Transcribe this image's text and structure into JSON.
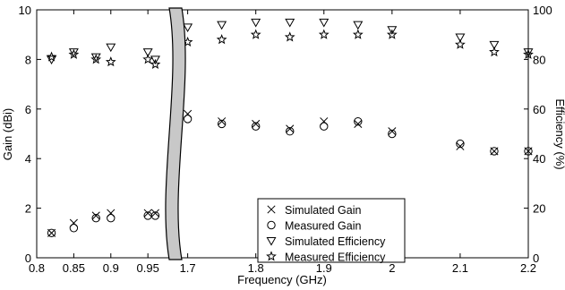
{
  "chart_data": {
    "type": "scatter",
    "title": "",
    "xlabel": "Frequency (GHz)",
    "ylabel": "Gain (dBi)",
    "y2label": "Efficiency (%)",
    "ylim": [
      0,
      10
    ],
    "y2lim": [
      0,
      100
    ],
    "yticks": [
      0,
      2,
      4,
      6,
      8,
      10
    ],
    "y2ticks": [
      0,
      20,
      40,
      60,
      80,
      100
    ],
    "grid": false,
    "legend_position": "lower-center",
    "x_break": true,
    "x_segments": [
      {
        "xlim": [
          0.8,
          0.98
        ],
        "xticks": [
          "0.8",
          "0.85",
          "0.9",
          "0.95"
        ]
      },
      {
        "xlim": [
          1.69,
          2.2
        ],
        "xticks": [
          "1.7",
          "1.8",
          "1.9",
          "2",
          "2.1",
          "2.2"
        ]
      }
    ],
    "series": [
      {
        "name": "Simulated Gain",
        "marker": "x",
        "axis": "left",
        "points": [
          [
            0.82,
            1.0
          ],
          [
            0.85,
            1.4
          ],
          [
            0.88,
            1.7
          ],
          [
            0.9,
            1.8
          ],
          [
            0.95,
            1.8
          ],
          [
            0.96,
            1.8
          ],
          [
            1.7,
            5.8
          ],
          [
            1.75,
            5.5
          ],
          [
            1.8,
            5.4
          ],
          [
            1.85,
            5.2
          ],
          [
            1.9,
            5.5
          ],
          [
            1.95,
            5.4
          ],
          [
            2.0,
            5.1
          ],
          [
            2.1,
            4.5
          ],
          [
            2.15,
            4.3
          ],
          [
            2.2,
            4.3
          ]
        ]
      },
      {
        "name": "Measured Gain",
        "marker": "o",
        "axis": "left",
        "points": [
          [
            0.82,
            1.0
          ],
          [
            0.85,
            1.2
          ],
          [
            0.88,
            1.6
          ],
          [
            0.9,
            1.6
          ],
          [
            0.95,
            1.7
          ],
          [
            0.96,
            1.7
          ],
          [
            1.7,
            5.6
          ],
          [
            1.75,
            5.4
          ],
          [
            1.8,
            5.3
          ],
          [
            1.85,
            5.1
          ],
          [
            1.9,
            5.3
          ],
          [
            1.95,
            5.5
          ],
          [
            2.0,
            5.0
          ],
          [
            2.1,
            4.6
          ],
          [
            2.15,
            4.3
          ],
          [
            2.2,
            4.3
          ]
        ]
      },
      {
        "name": "Simulated Efficiency",
        "marker": "triangle-down",
        "axis": "right",
        "points": [
          [
            0.82,
            80
          ],
          [
            0.85,
            83
          ],
          [
            0.88,
            81
          ],
          [
            0.9,
            85
          ],
          [
            0.95,
            83
          ],
          [
            0.96,
            80
          ],
          [
            1.7,
            93
          ],
          [
            1.75,
            94
          ],
          [
            1.8,
            95
          ],
          [
            1.85,
            95
          ],
          [
            1.9,
            95
          ],
          [
            1.95,
            94
          ],
          [
            2.0,
            92
          ],
          [
            2.1,
            89
          ],
          [
            2.15,
            86
          ],
          [
            2.2,
            83
          ]
        ]
      },
      {
        "name": "Measured Efficiency",
        "marker": "star",
        "axis": "right",
        "points": [
          [
            0.82,
            81
          ],
          [
            0.85,
            82
          ],
          [
            0.88,
            80
          ],
          [
            0.9,
            79
          ],
          [
            0.95,
            80
          ],
          [
            0.96,
            78
          ],
          [
            1.7,
            87
          ],
          [
            1.75,
            88
          ],
          [
            1.8,
            90
          ],
          [
            1.85,
            89
          ],
          [
            1.9,
            90
          ],
          [
            1.95,
            90
          ],
          [
            2.0,
            90
          ],
          [
            2.1,
            86
          ],
          [
            2.15,
            83
          ],
          [
            2.2,
            82
          ]
        ]
      }
    ]
  }
}
